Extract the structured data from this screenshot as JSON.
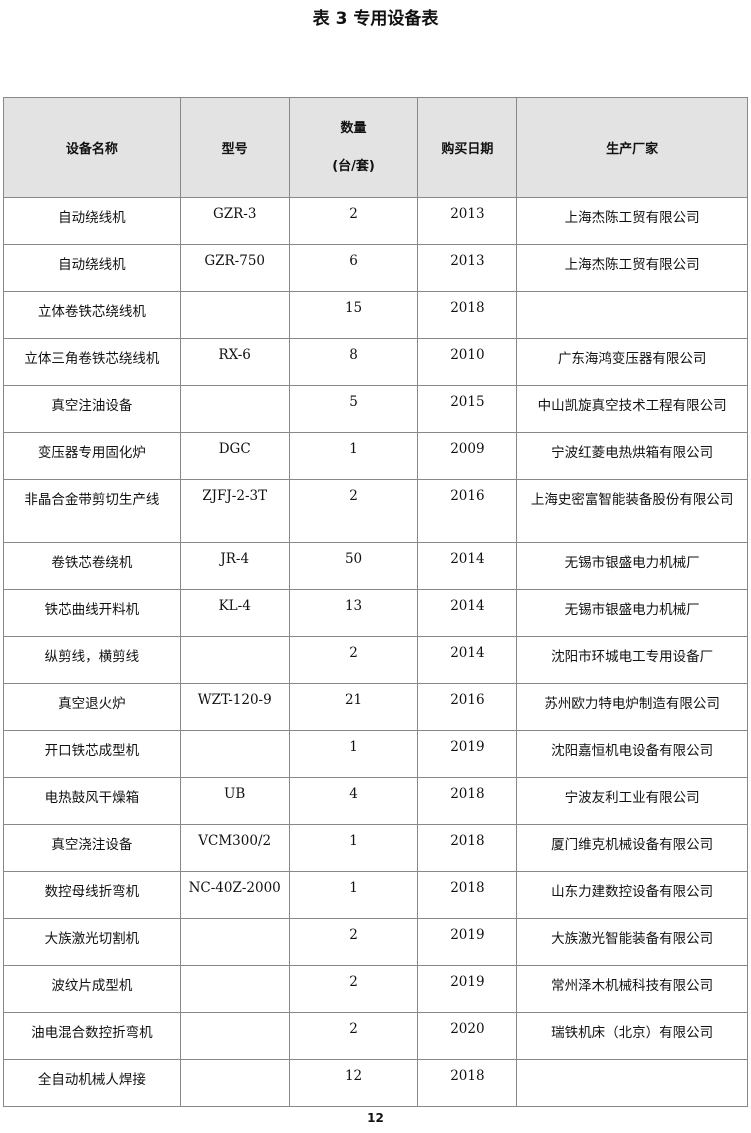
{
  "title": "表 3 专用设备表",
  "headers": {
    "name": "设备名称",
    "model": "型号",
    "qty_line1": "数量",
    "qty_line2": "(台/套)",
    "date": "购买日期",
    "maker": "生产厂家"
  },
  "rows": [
    [
      "自动绕线机",
      "GZR-3",
      "2",
      "2013",
      "上海杰陈工贸有限公司"
    ],
    [
      "自动绕线机",
      "GZR-750",
      "6",
      "2013",
      "上海杰陈工贸有限公司"
    ],
    [
      "立体卷铁芯绕线机",
      "",
      "15",
      "2018",
      ""
    ],
    [
      "立体三角卷铁芯绕线机",
      "RX-6",
      "8",
      "2010",
      "广东海鸿变压器有限公司"
    ],
    [
      "真空注油设备",
      "",
      "5",
      "2015",
      "中山凯旋真空技术工程有限公司"
    ],
    [
      "变压器专用固化炉",
      "DGC",
      "1",
      "2009",
      "宁波红菱电热烘箱有限公司"
    ],
    [
      "非晶合金带剪切生产线",
      "ZJFJ-2-3T",
      "2",
      "2016",
      "上海史密富智能装备股份有限公司"
    ],
    [
      "卷铁芯卷绕机",
      "JR-4",
      "50",
      "2014",
      "无锡市银盛电力机械厂"
    ],
    [
      "铁芯曲线开料机",
      "KL-4",
      "13",
      "2014",
      "无锡市银盛电力机械厂"
    ],
    [
      "纵剪线，横剪线",
      "",
      "2",
      "2014",
      "沈阳市环城电工专用设备厂"
    ],
    [
      "真空退火炉",
      "WZT-120-9",
      "21",
      "2016",
      "苏州欧力特电炉制造有限公司"
    ],
    [
      "开口铁芯成型机",
      "",
      "1",
      "2019",
      "沈阳嘉恒机电设备有限公司"
    ],
    [
      "电热鼓风干燥箱",
      "UB",
      "4",
      "2018",
      "宁波友利工业有限公司"
    ],
    [
      "真空浇注设备",
      "VCM300/2",
      "1",
      "2018",
      "厦门维克机械设备有限公司"
    ],
    [
      "数控母线折弯机",
      "NC-40Z-2000",
      "1",
      "2018",
      "山东力建数控设备有限公司"
    ],
    [
      "大族激光切割机",
      "",
      "2",
      "2019",
      "大族激光智能装备有限公司"
    ],
    [
      "波纹片成型机",
      "",
      "2",
      "2019",
      "常州泽木机械科技有限公司"
    ],
    [
      "油电混合数控折弯机",
      "",
      "2",
      "2020",
      "瑞铁机床（北京）有限公司"
    ],
    [
      "全自动机械人焊接",
      "",
      "12",
      "2018",
      ""
    ]
  ],
  "page_number": "12"
}
